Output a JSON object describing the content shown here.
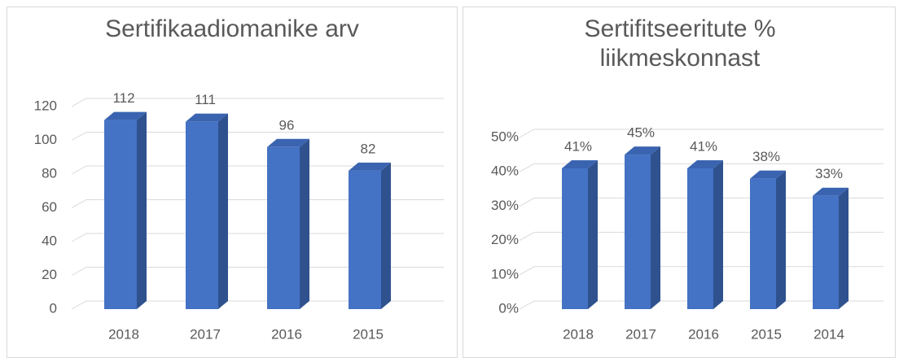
{
  "chart_data": [
    {
      "type": "bar3d",
      "title": "Sertifikaadiomanike arv",
      "categories": [
        "2018",
        "2017",
        "2016",
        "2015"
      ],
      "values": [
        112,
        111,
        96,
        82
      ],
      "color": "#4472c4",
      "ylim": [
        0,
        120
      ],
      "yticks": [
        0,
        20,
        40,
        60,
        80,
        100,
        120
      ],
      "grid": true
    },
    {
      "type": "bar3d",
      "title": "Sertifitseeritute % liikmeskonnast",
      "categories": [
        "2018",
        "2017",
        "2016",
        "2015",
        "2014"
      ],
      "values": [
        41,
        45,
        41,
        38,
        33
      ],
      "value_labels": [
        "41%",
        "45%",
        "41%",
        "38%",
        "33%"
      ],
      "color": "#4472c4",
      "ylim": [
        0,
        50
      ],
      "yticks": [
        {
          "value": 0,
          "label": "0%"
        },
        {
          "value": 10,
          "label": "10%"
        },
        {
          "value": 20,
          "label": "20%"
        },
        {
          "value": 30,
          "label": "30%"
        },
        {
          "value": 40,
          "label": "40%"
        },
        {
          "value": 50,
          "label": "50%"
        }
      ],
      "grid": true
    }
  ]
}
